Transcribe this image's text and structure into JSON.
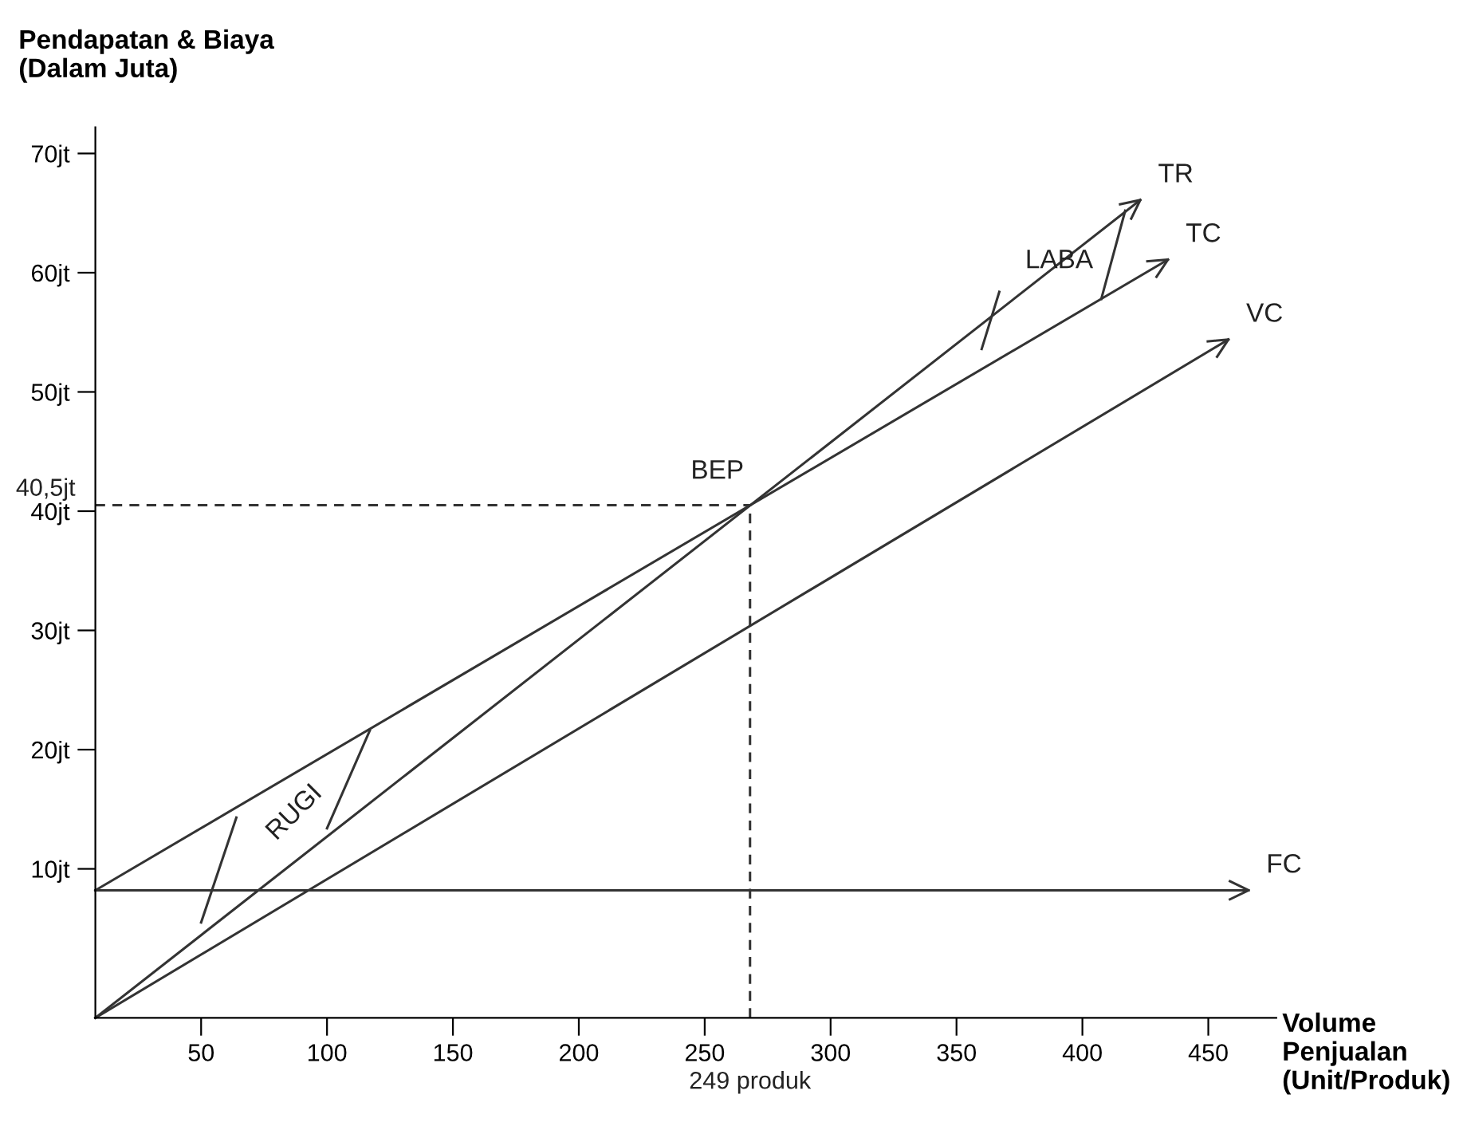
{
  "chart_data": {
    "type": "line",
    "xlabel": "Volume\nPenjualan\n(Unit/Produk)",
    "ylabel": "Pendapatan & Biaya\n(Dalam Juta)",
    "xlim": [
      8,
      477
    ],
    "ylim": [
      -2.5,
      72.2
    ],
    "xticks": [
      50,
      100,
      150,
      200,
      250,
      300,
      350,
      400,
      450
    ],
    "yticks": [
      {
        "value": 10,
        "label": "10jt"
      },
      {
        "value": 20,
        "label": "20jt"
      },
      {
        "value": 30,
        "label": "30jt"
      },
      {
        "value": 40,
        "label": "40jt"
      },
      {
        "value": 50,
        "label": "50jt"
      },
      {
        "value": 60,
        "label": "60jt"
      },
      {
        "value": 70,
        "label": "70jt"
      }
    ],
    "series": [
      {
        "name": "TR",
        "color": "#333333",
        "x": [
          8,
          423
        ],
        "values": [
          -2.5,
          66.1
        ]
      },
      {
        "name": "TC",
        "color": "#333333",
        "x": [
          8,
          434
        ],
        "values": [
          8.2,
          61.1
        ]
      },
      {
        "name": "VC",
        "color": "#333333",
        "x": [
          8,
          458
        ],
        "values": [
          -2.5,
          54.4
        ]
      },
      {
        "name": "FC",
        "color": "#333333",
        "x": [
          8,
          466
        ],
        "values": [
          8.2,
          8.2
        ]
      },
      {
        "color": "#333333",
        "line_style": "dashed",
        "x": [
          8,
          268
        ],
        "values": [
          40.5,
          40.5
        ]
      },
      {
        "color": "#333333",
        "line_style": "dashed",
        "x": [
          268,
          268
        ],
        "values": [
          -2.5,
          40.5
        ]
      },
      {
        "color": "#333333",
        "x": [
          50,
          64
        ],
        "values": [
          5.5,
          14.3
        ]
      },
      {
        "color": "#333333",
        "x": [
          100,
          117
        ],
        "values": [
          13.4,
          21.6
        ]
      },
      {
        "color": "#333333",
        "x": [
          360,
          367
        ],
        "values": [
          53.6,
          58.4
        ]
      },
      {
        "color": "#333333",
        "x": [
          407.5,
          417
        ],
        "values": [
          57.8,
          65.2
        ]
      }
    ],
    "annotations": [
      "RUGI",
      "LABA",
      "BEP",
      {
        "text": "249 produk",
        "x": 268,
        "y": -2.5
      },
      {
        "text": "40,5jt",
        "x": 8,
        "y": 40.5
      }
    ]
  }
}
